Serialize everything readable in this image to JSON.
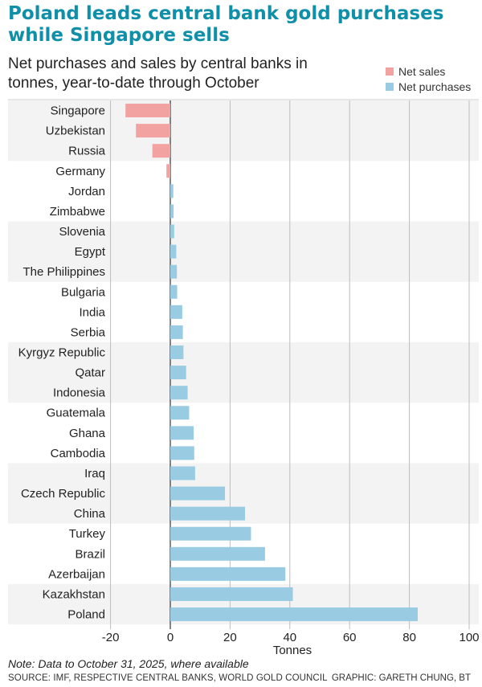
{
  "title": "Poland leads central bank gold purchases while Singapore sells",
  "subtitle": "Net purchases and sales by central banks in tonnes, year-to-date through October",
  "legend": {
    "net_sales": "Net sales",
    "net_purchases": "Net purchases"
  },
  "colors": {
    "net_sales": "#f2a3a1",
    "net_purchases": "#99cce2",
    "band": "#f3f3f3",
    "grid": "#bdbdbd",
    "axis": "#444444",
    "title": "#0f8fa8"
  },
  "note": "Note: Data to October 31, 2025, where available",
  "source": "SOURCE: IMF, RESPECTIVE CENTRAL BANKS, WORLD GOLD COUNCIL",
  "credit": "GRAPHIC: GARETH CHUNG, BT",
  "chart_data": {
    "type": "bar",
    "orientation": "horizontal",
    "xlabel": "Tonnes",
    "xlim": [
      -20,
      100
    ],
    "xticks": [
      -20,
      0,
      20,
      40,
      60,
      80,
      100
    ],
    "grid": true,
    "legend_position": "top-right",
    "categories": [
      "Singapore",
      "Uzbekistan",
      "Russia",
      "Germany",
      "Jordan",
      "Zimbabwe",
      "Slovenia",
      "Egypt",
      "The Philippines",
      "Bulgaria",
      "India",
      "Serbia",
      "Kyrgyz Republic",
      "Qatar",
      "Indonesia",
      "Guatemala",
      "Ghana",
      "Cambodia",
      "Iraq",
      "Czech Republic",
      "China",
      "Turkey",
      "Brazil",
      "Azerbaijan",
      "Kazakhstan",
      "Poland"
    ],
    "values": [
      -15.0,
      -11.5,
      -6.0,
      -1.3,
      1.0,
      1.1,
      1.3,
      2.0,
      2.2,
      2.3,
      4.0,
      4.2,
      4.4,
      5.3,
      5.8,
      6.3,
      7.8,
      8.0,
      8.3,
      18.3,
      25.0,
      27.0,
      31.7,
      38.5,
      41.0,
      82.8
    ]
  }
}
